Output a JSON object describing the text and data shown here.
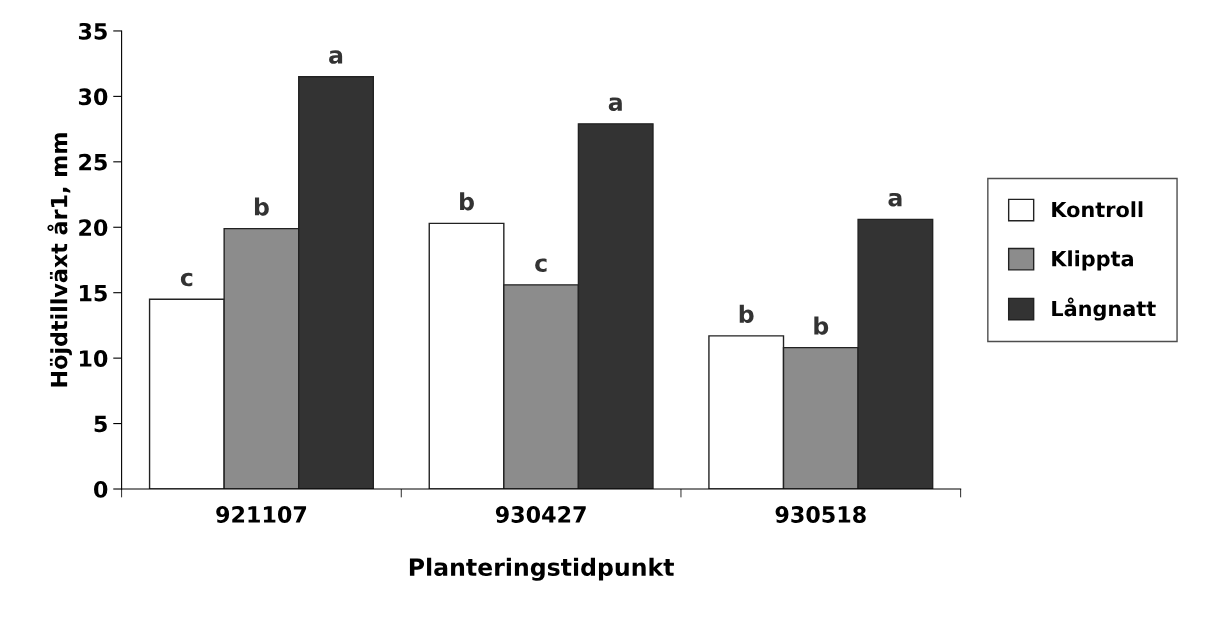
{
  "chart_data": {
    "type": "bar",
    "xlabel": "Planteringstidpunkt",
    "ylabel": "Höjdtillväxt år1, mm",
    "categories": [
      "921107",
      "930427",
      "930518"
    ],
    "series": [
      {
        "name": "Kontroll",
        "color": "#ffffff",
        "values": [
          14.5,
          20.3,
          11.7
        ],
        "value_labels": [
          "c",
          "b",
          "b"
        ]
      },
      {
        "name": "Klippta",
        "color": "#8c8c8c",
        "values": [
          19.9,
          15.6,
          10.8
        ],
        "value_labels": [
          "b",
          "c",
          "b"
        ]
      },
      {
        "name": "Långnatt",
        "color": "#333333",
        "values": [
          31.5,
          27.9,
          20.6
        ],
        "value_labels": [
          "a",
          "a",
          "a"
        ]
      }
    ],
    "ylim": [
      0,
      35
    ],
    "yticks": [
      0,
      5,
      10,
      15,
      20,
      25,
      30,
      35
    ],
    "grid": false,
    "legend": "right"
  }
}
